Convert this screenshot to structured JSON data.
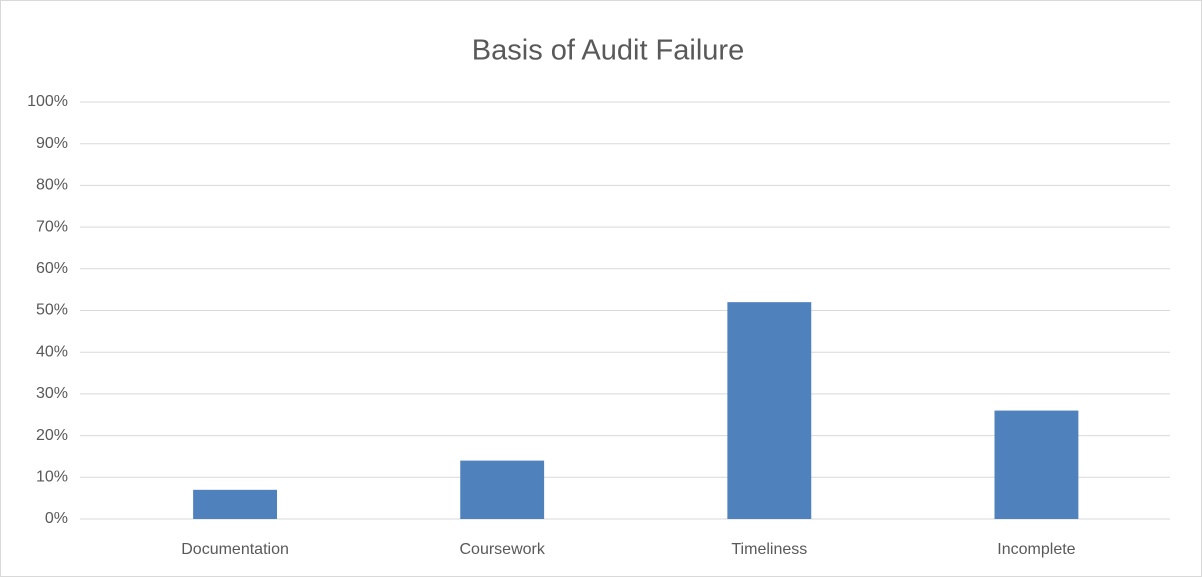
{
  "chart_data": {
    "type": "bar",
    "title": "Basis of Audit Failure",
    "categories": [
      "Documentation",
      "Coursework",
      "Timeliness",
      "Incomplete"
    ],
    "values": [
      7,
      14,
      52,
      26
    ],
    "color": "#4f81bd",
    "ylim": [
      0,
      100
    ],
    "yticks": [
      {
        "value": 0,
        "label": "0%"
      },
      {
        "value": 10,
        "label": "10%"
      },
      {
        "value": 20,
        "label": "20%"
      },
      {
        "value": 30,
        "label": "30%"
      },
      {
        "value": 40,
        "label": "40%"
      },
      {
        "value": 50,
        "label": "50%"
      },
      {
        "value": 60,
        "label": "60%"
      },
      {
        "value": 70,
        "label": "70%"
      },
      {
        "value": 80,
        "label": "80%"
      },
      {
        "value": 90,
        "label": "90%"
      },
      {
        "value": 100,
        "label": "100%"
      }
    ],
    "grid": true
  }
}
